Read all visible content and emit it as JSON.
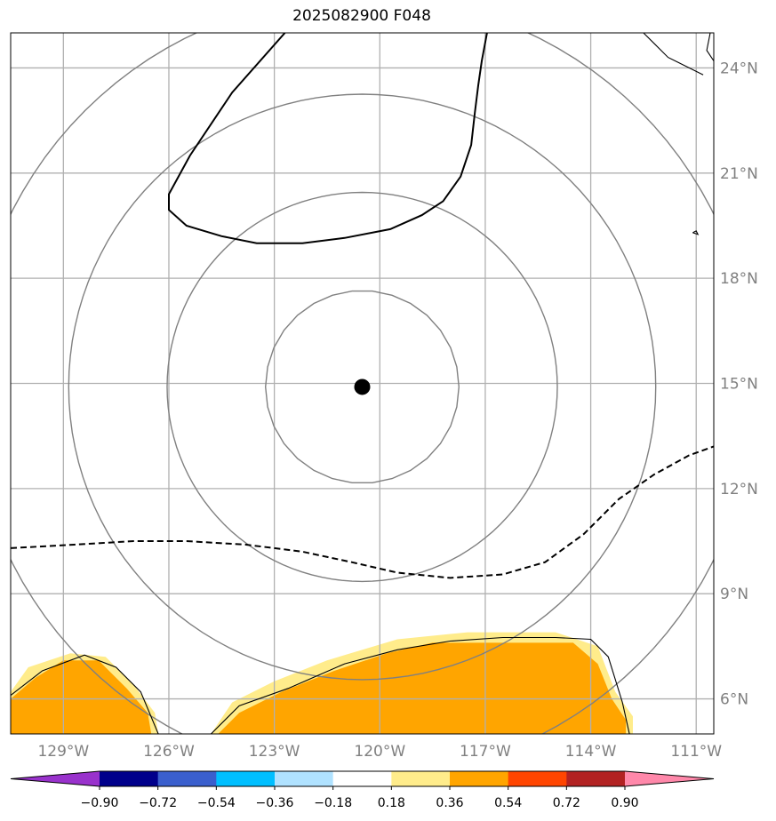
{
  "chart_data": {
    "type": "map",
    "title": "2025082900 F048",
    "lon_range": [
      -130.5,
      -110.5
    ],
    "lat_range": [
      5,
      25
    ],
    "lon_ticks": [
      {
        "value": -129,
        "label": "129°W"
      },
      {
        "value": -126,
        "label": "126°W"
      },
      {
        "value": -123,
        "label": "123°W"
      },
      {
        "value": -120,
        "label": "120°W"
      },
      {
        "value": -117,
        "label": "117°W"
      },
      {
        "value": -114,
        "label": "114°W"
      },
      {
        "value": -111,
        "label": "111°W"
      }
    ],
    "lat_ticks": [
      {
        "value": 6,
        "label": "6°N"
      },
      {
        "value": 9,
        "label": "9°N"
      },
      {
        "value": 12,
        "label": "12°N"
      },
      {
        "value": 15,
        "label": "15°N"
      },
      {
        "value": 18,
        "label": "18°N"
      },
      {
        "value": 21,
        "label": "21°N"
      },
      {
        "value": 24,
        "label": "24°N"
      }
    ],
    "grid": true,
    "center": {
      "lon": -120.5,
      "lat": 14.9
    },
    "range_rings_deg": [
      2.75,
      5.55,
      8.35,
      11.15
    ],
    "colorbar": {
      "orientation": "horizontal",
      "extend": "both",
      "levels": [
        -0.9,
        -0.72,
        -0.54,
        -0.36,
        -0.18,
        0.18,
        0.36,
        0.54,
        0.72,
        0.9
      ],
      "labels": [
        "−0.90",
        "−0.72",
        "−0.54",
        "−0.36",
        "−0.18",
        "0.18",
        "0.36",
        "0.54",
        "0.72",
        "0.90"
      ],
      "colors": [
        "#9932cc",
        "#00008b",
        "#3a5fcd",
        "#00bfff",
        "#b0e2ff",
        "#ffffff",
        "#ffec8b",
        "#ffa500",
        "#ff4500",
        "#b22222",
        "#ff88aa"
      ]
    },
    "solid_contour": [
      [
        -122.7,
        25
      ],
      [
        -124.2,
        23.3
      ],
      [
        -125.4,
        21.5
      ],
      [
        -126.0,
        20.4
      ],
      [
        -126.0,
        19.95
      ],
      [
        -125.5,
        19.5
      ],
      [
        -124.5,
        19.2
      ],
      [
        -123.5,
        19.0
      ],
      [
        -122.2,
        19.0
      ],
      [
        -121.0,
        19.15
      ],
      [
        -119.7,
        19.4
      ],
      [
        -118.8,
        19.8
      ],
      [
        -118.2,
        20.2
      ],
      [
        -117.7,
        20.9
      ],
      [
        -117.4,
        21.8
      ],
      [
        -117.3,
        22.7
      ],
      [
        -117.2,
        23.5
      ],
      [
        -117.1,
        24.2
      ],
      [
        -116.95,
        25
      ]
    ],
    "dashed_contour": [
      [
        -130.5,
        10.3
      ],
      [
        -128.7,
        10.4
      ],
      [
        -127.0,
        10.5
      ],
      [
        -125.5,
        10.5
      ],
      [
        -123.8,
        10.4
      ],
      [
        -122.2,
        10.2
      ],
      [
        -120.8,
        9.9
      ],
      [
        -119.5,
        9.6
      ],
      [
        -118.0,
        9.45
      ],
      [
        -116.5,
        9.55
      ],
      [
        -115.3,
        9.9
      ],
      [
        -114.2,
        10.7
      ],
      [
        -113.2,
        11.7
      ],
      [
        -112.2,
        12.4
      ],
      [
        -111.2,
        12.95
      ],
      [
        -110.5,
        13.2
      ]
    ],
    "positive_region_outer": [
      [
        -130.5,
        6.2
      ],
      [
        -130.0,
        6.9
      ],
      [
        -128.8,
        7.3
      ],
      [
        -127.8,
        7.2
      ],
      [
        -127.0,
        6.4
      ],
      [
        -126.4,
        5.6
      ],
      [
        -126.3,
        5.0
      ],
      [
        -130.5,
        5.0
      ]
    ],
    "positive_region_inner": [
      [
        -130.5,
        6.0
      ],
      [
        -129.8,
        6.6
      ],
      [
        -129.0,
        7.1
      ],
      [
        -128.0,
        7.1
      ],
      [
        -127.2,
        6.3
      ],
      [
        -126.6,
        5.6
      ],
      [
        -126.5,
        5.0
      ],
      [
        -130.5,
        5.0
      ]
    ],
    "positive_region2_outer": [
      [
        -124.8,
        5.0
      ],
      [
        -124.2,
        5.9
      ],
      [
        -123.0,
        6.5
      ],
      [
        -121.5,
        7.1
      ],
      [
        -119.5,
        7.7
      ],
      [
        -117.5,
        7.9
      ],
      [
        -115.0,
        7.9
      ],
      [
        -113.8,
        7.5
      ],
      [
        -113.3,
        6.2
      ],
      [
        -112.8,
        5.5
      ],
      [
        -112.8,
        5.0
      ]
    ],
    "positive_region2_inner": [
      [
        -124.6,
        5.0
      ],
      [
        -124.0,
        5.6
      ],
      [
        -122.8,
        6.2
      ],
      [
        -121.3,
        6.8
      ],
      [
        -119.8,
        7.3
      ],
      [
        -118.5,
        7.6
      ],
      [
        -116.5,
        7.6
      ],
      [
        -114.5,
        7.6
      ],
      [
        -113.8,
        7.0
      ],
      [
        -113.4,
        6.0
      ],
      [
        -113.0,
        5.4
      ],
      [
        -113.0,
        5.0
      ]
    ],
    "coastlines": [
      [
        [
          -130.5,
          6.1
        ],
        [
          -129.6,
          6.8
        ],
        [
          -128.4,
          7.25
        ],
        [
          -127.5,
          6.9
        ],
        [
          -126.8,
          6.2
        ],
        [
          -126.3,
          5.0
        ]
      ],
      [
        [
          -124.8,
          5.0
        ],
        [
          -124.0,
          5.8
        ],
        [
          -122.6,
          6.3
        ],
        [
          -121.0,
          7.0
        ],
        [
          -119.5,
          7.4
        ],
        [
          -118.0,
          7.65
        ],
        [
          -116.5,
          7.75
        ],
        [
          -115.0,
          7.75
        ],
        [
          -114.0,
          7.7
        ],
        [
          -113.5,
          7.2
        ],
        [
          -113.1,
          5.9
        ],
        [
          -112.9,
          5.0
        ]
      ],
      [
        [
          -112.5,
          25
        ],
        [
          -112.2,
          24.7
        ],
        [
          -111.8,
          24.3
        ],
        [
          -111.2,
          24.0
        ],
        [
          -110.8,
          23.8
        ]
      ],
      [
        [
          -110.5,
          24.2
        ],
        [
          -110.7,
          24.5
        ],
        [
          -110.6,
          25
        ]
      ],
      [
        [
          -111.1,
          19.3
        ],
        [
          -111.0,
          19.35
        ],
        [
          -110.95,
          19.25
        ],
        [
          -111.1,
          19.3
        ]
      ]
    ]
  }
}
